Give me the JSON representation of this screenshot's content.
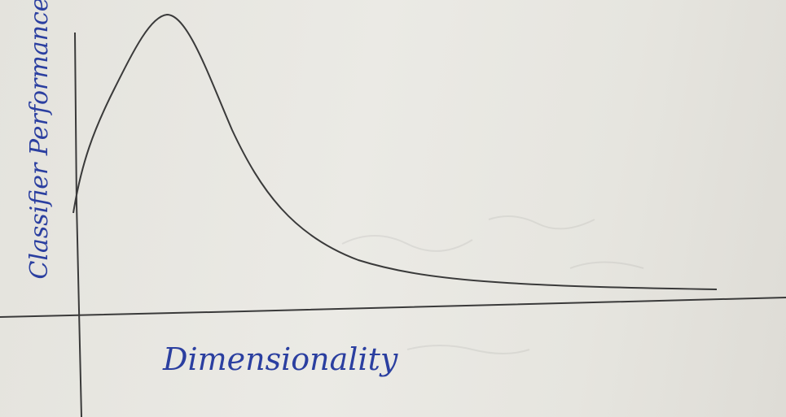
{
  "axes": {
    "x_label": "Dimensionality",
    "y_label": "Classifier Performance"
  }
}
